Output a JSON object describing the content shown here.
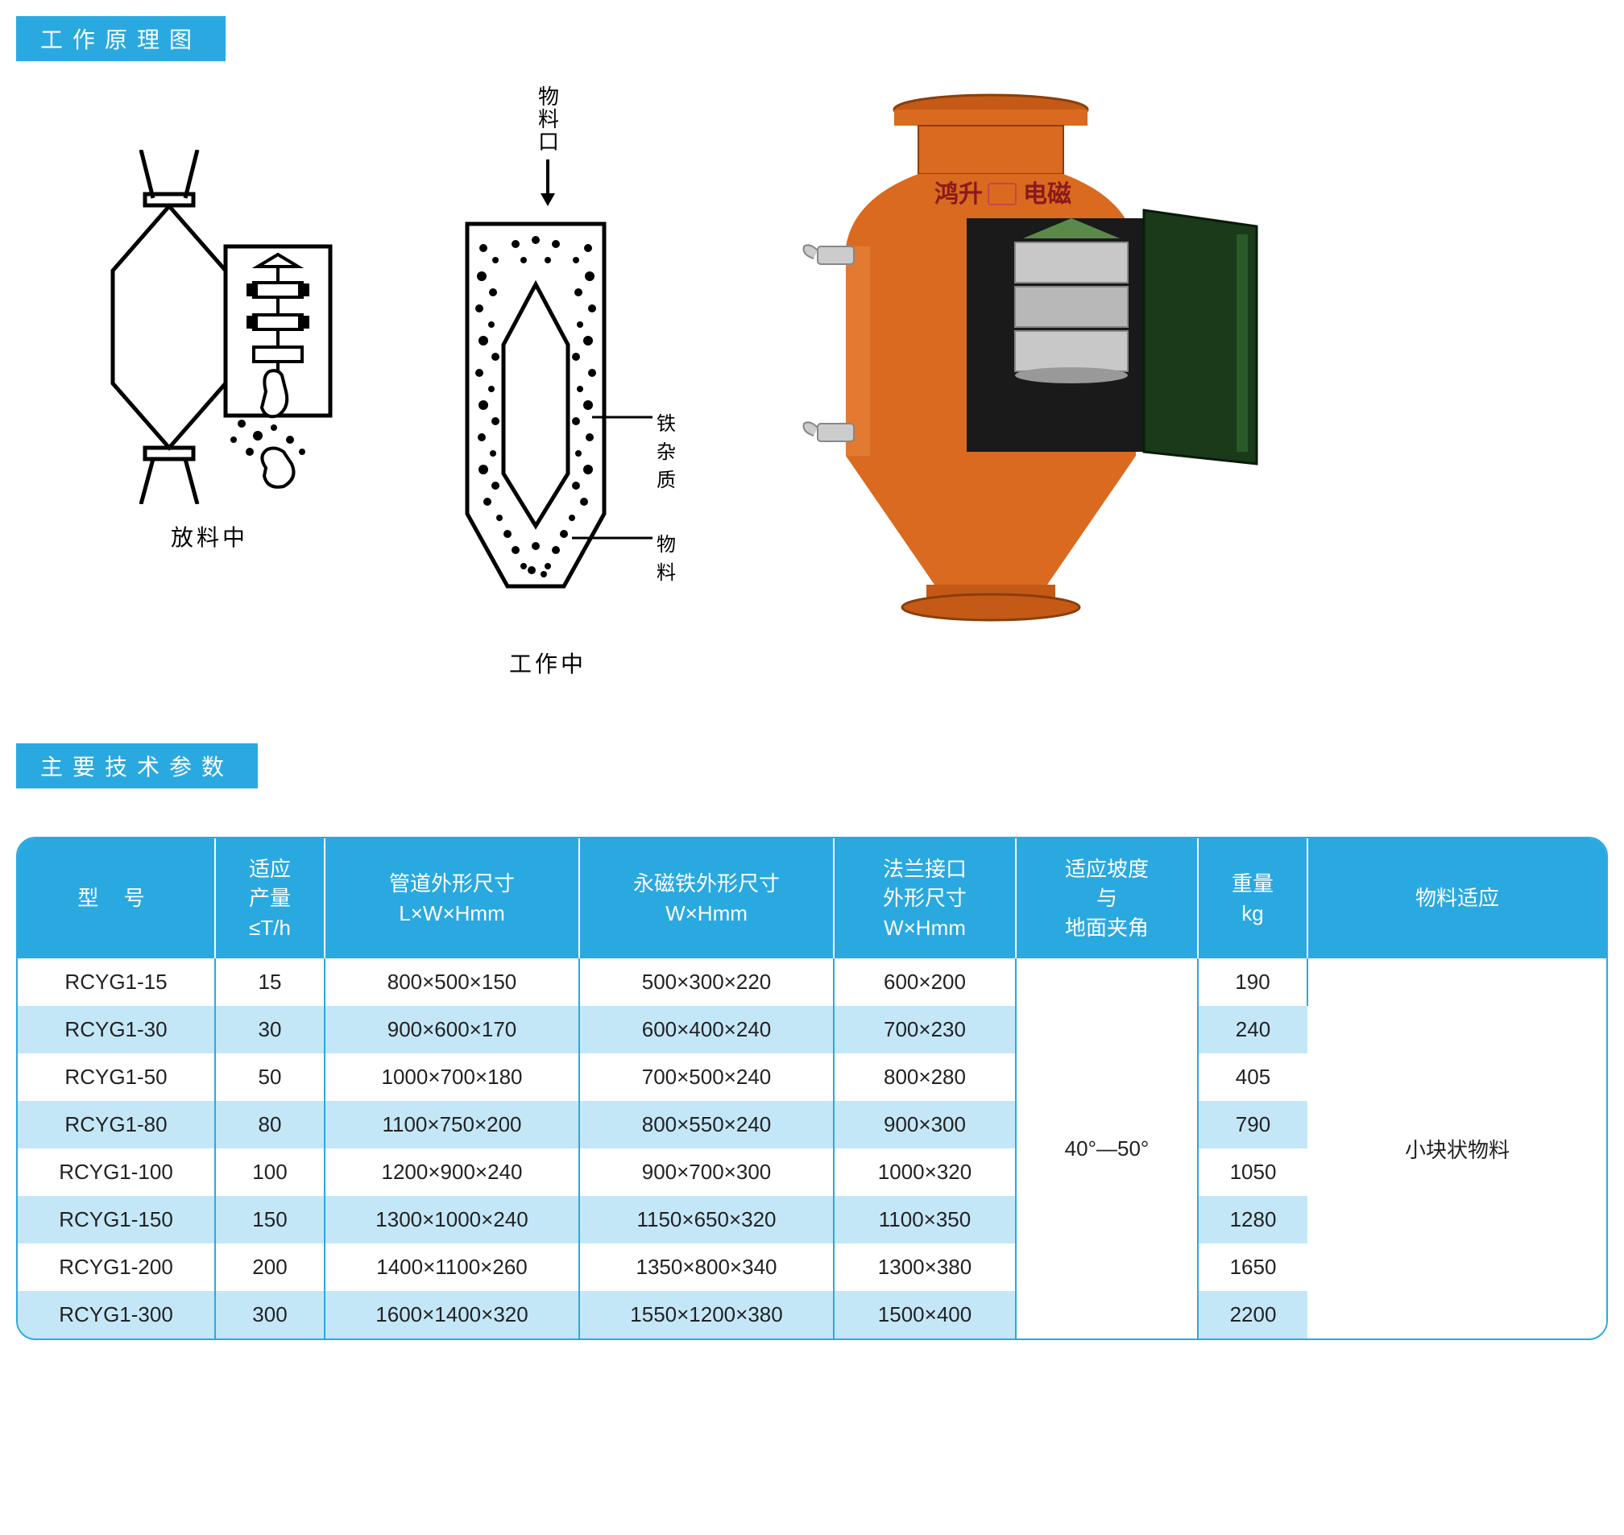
{
  "section1": {
    "title": "工作原理图",
    "header_bg": "#2aa9e0",
    "header_text_color": "#ffffff"
  },
  "diagrams": {
    "inlet_label": "物料口",
    "left_caption": "放料中",
    "middle_caption": "工作中",
    "callout1": "铁杂质",
    "callout2": "物料",
    "photo_brand": "鸿升 电磁",
    "colors": {
      "stroke": "#000000",
      "equipment_body": "#d96a1f",
      "equipment_door": "#1a3a1a",
      "equipment_core": "#b8b8b8",
      "cone_top": "#5a8a4a"
    }
  },
  "section2": {
    "title": "主要技术参数",
    "header_bg": "#2aa9e0"
  },
  "table": {
    "header_bg": "#2aa9e0",
    "header_text": "#ffffff",
    "row_even_bg": "#ffffff",
    "row_odd_bg": "#c4e7f8",
    "border_color": "#2aa9e0",
    "columns": [
      "型 号",
      "适应\n产量\n≤T/h",
      "管道外形尺寸\nL×W×Hmm",
      "永磁铁外形尺寸\nW×Hmm",
      "法兰接口\n外形尺寸\nW×Hmm",
      "适应坡度\n与\n地面夹角",
      "重量\nkg",
      "物料适应"
    ],
    "rows": [
      {
        "model": "RCYG1-15",
        "cap": "15",
        "pipe": "800×500×150",
        "mag": "500×300×220",
        "flange": "600×200",
        "weight": "190"
      },
      {
        "model": "RCYG1-30",
        "cap": "30",
        "pipe": "900×600×170",
        "mag": "600×400×240",
        "flange": "700×230",
        "weight": "240"
      },
      {
        "model": "RCYG1-50",
        "cap": "50",
        "pipe": "1000×700×180",
        "mag": "700×500×240",
        "flange": "800×280",
        "weight": "405"
      },
      {
        "model": "RCYG1-80",
        "cap": "80",
        "pipe": "1100×750×200",
        "mag": "800×550×240",
        "flange": "900×300",
        "weight": "790"
      },
      {
        "model": "RCYG1-100",
        "cap": "100",
        "pipe": "1200×900×240",
        "mag": "900×700×300",
        "flange": "1000×320",
        "weight": "1050"
      },
      {
        "model": "RCYG1-150",
        "cap": "150",
        "pipe": "1300×1000×240",
        "mag": "1150×650×320",
        "flange": "1100×350",
        "weight": "1280"
      },
      {
        "model": "RCYG1-200",
        "cap": "200",
        "pipe": "1400×1100×260",
        "mag": "1350×800×340",
        "flange": "1300×380",
        "weight": "1650"
      },
      {
        "model": "RCYG1-300",
        "cap": "300",
        "pipe": "1600×1400×320",
        "mag": "1550×1200×380",
        "flange": "1500×400",
        "weight": "2200"
      }
    ],
    "angle_merged": "40°—50°",
    "material_merged": "小块状物料"
  }
}
